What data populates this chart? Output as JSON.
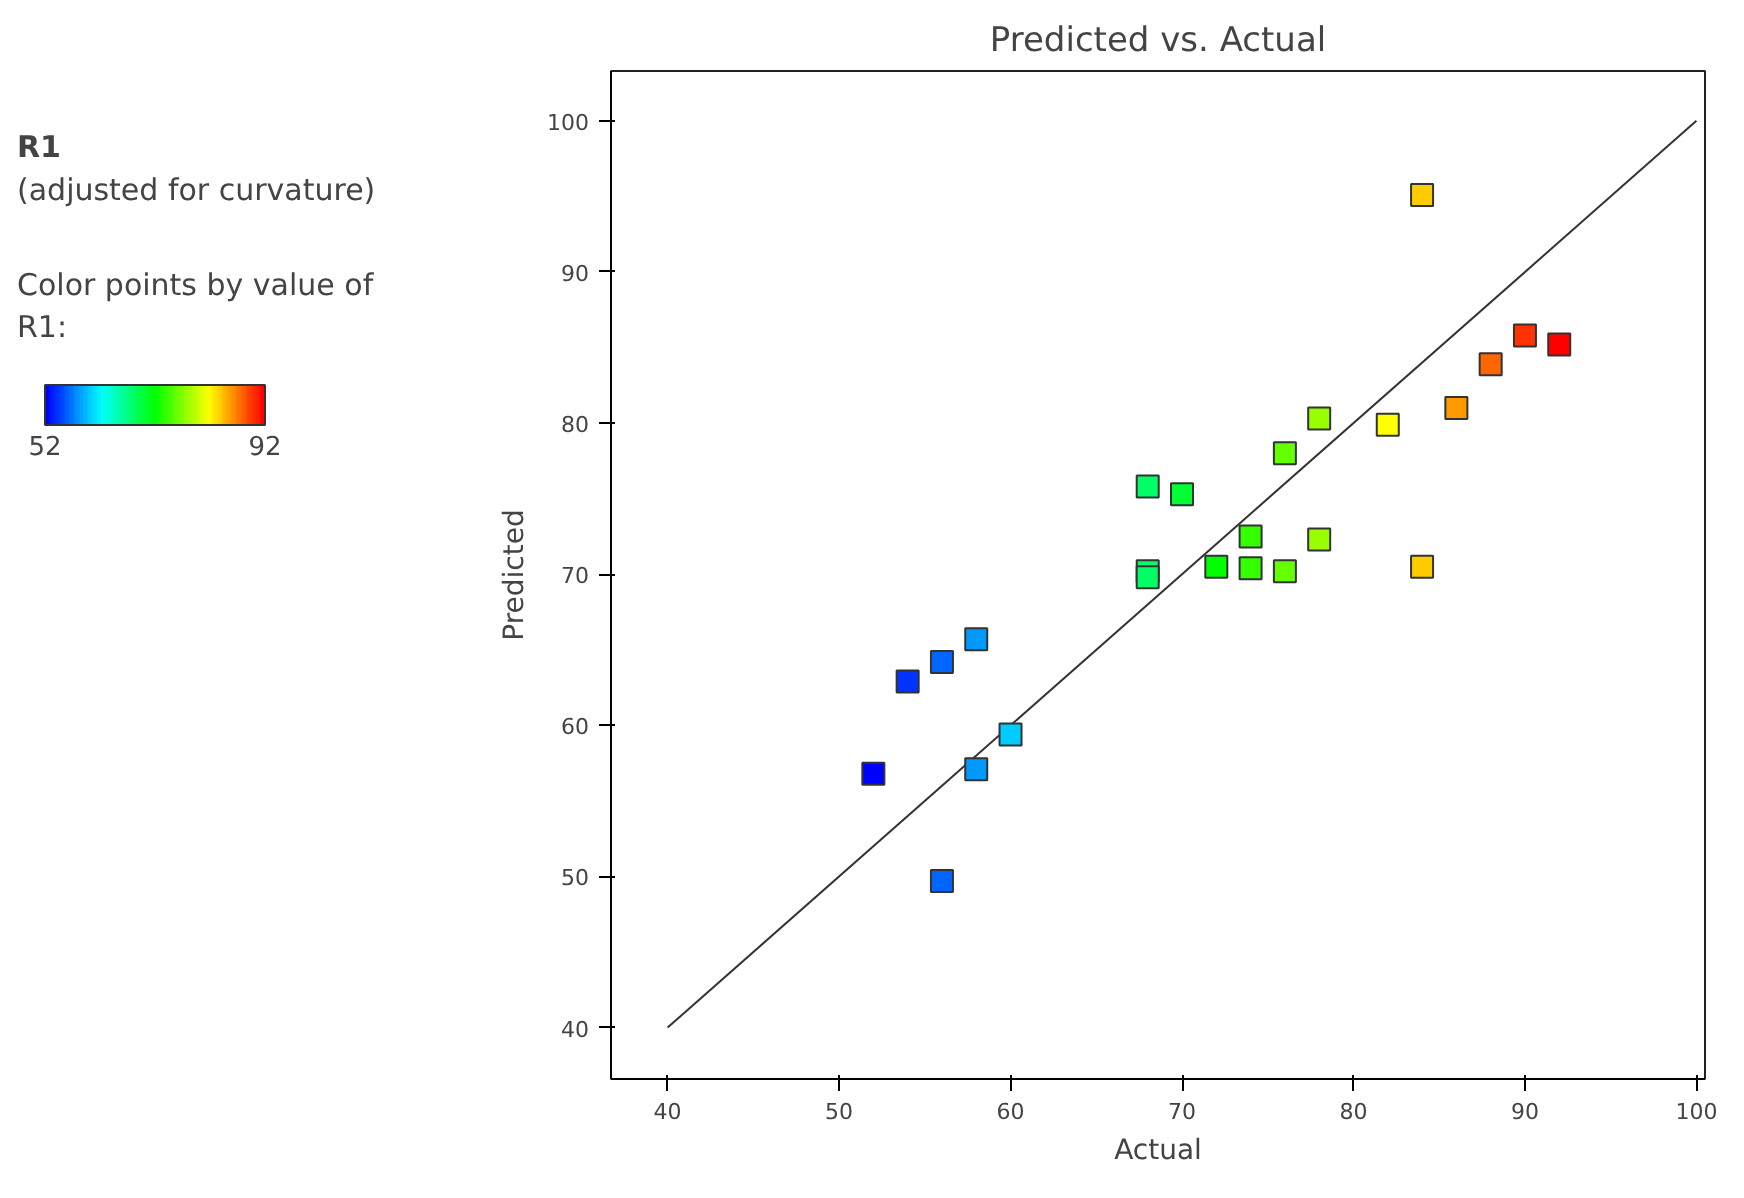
{
  "chart_data": {
    "type": "scatter",
    "title": "Predicted vs. Actual",
    "xlabel": "Actual",
    "ylabel": "Predicted",
    "annotations": [
      "R1",
      "(adjusted for curvature)"
    ],
    "clabel": "Color points by value of R1:",
    "clim": [
      52,
      92
    ],
    "cticks": [
      52,
      92
    ],
    "xlim": [
      36.7,
      100.5
    ],
    "ylim": [
      36.6,
      103.3
    ],
    "xticks": [
      40,
      50,
      60,
      70,
      80,
      90,
      100
    ],
    "yticks": [
      40,
      50,
      60,
      70,
      80,
      90,
      100
    ],
    "grid": false,
    "marker": "square",
    "series": [
      {
        "type": "line",
        "marker": "none",
        "color": "#333333",
        "x": [
          40,
          100
        ],
        "values": [
          40,
          100
        ]
      },
      {
        "x": [
          84,
          90,
          92,
          88,
          86,
          78,
          82,
          76,
          68,
          70,
          74,
          78,
          72,
          74,
          76,
          68,
          68,
          84,
          58,
          56,
          54,
          60,
          52,
          58,
          56
        ],
        "values": [
          95.1,
          85.8,
          85.2,
          83.9,
          81.0,
          80.3,
          79.9,
          78.0,
          75.8,
          75.3,
          72.5,
          72.3,
          70.5,
          70.4,
          70.2,
          70.2,
          69.8,
          70.5,
          65.7,
          64.2,
          62.9,
          59.4,
          56.8,
          57.1,
          49.7
        ],
        "colors": [
          "#ffcc00",
          "#ff3300",
          "#ff0000",
          "#ff6600",
          "#ff9900",
          "#99ff00",
          "#ffff00",
          "#66ff00",
          "#00ff66",
          "#00ff33",
          "#33ff00",
          "#99ff00",
          "#00ff00",
          "#33ff00",
          "#66ff00",
          "#00ff66",
          "#00ff66",
          "#ffcc00",
          "#0099ff",
          "#0066ff",
          "#0033ff",
          "#00ccff",
          "#0000ff",
          "#0099ff",
          "#0066ff"
        ]
      }
    ]
  }
}
